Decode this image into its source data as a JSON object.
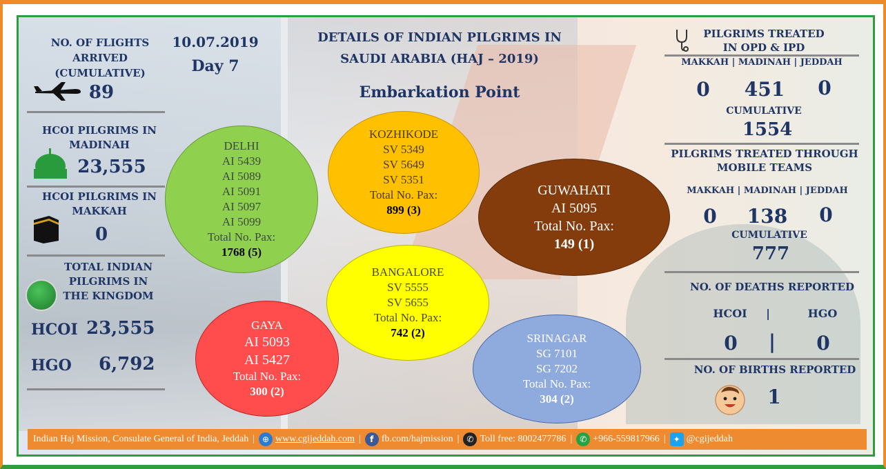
{
  "header": {
    "date": "10.07.2019",
    "day": "Day 7",
    "title_line1": "DETAILS OF INDIAN PILGRIMS IN",
    "title_line2": "SAUDI ARABIA (HAJ – 2019)",
    "subtitle": "Embarkation Point"
  },
  "left": {
    "flights_label_1": "NO. OF FLIGHTS",
    "flights_label_2": "ARRIVED",
    "flights_label_3": "(CUMULATIVE)",
    "flights_value": "89",
    "madinah_label_1": "HCOI PILGRIMS IN",
    "madinah_label_2": "MADINAH",
    "madinah_value": "23,555",
    "makkah_label_1": "HCOI PILGRIMS IN",
    "makkah_label_2": "MAKKAH",
    "makkah_value": "0",
    "kingdom_label_1": "TOTAL INDIAN",
    "kingdom_label_2": "PILGRIMS IN",
    "kingdom_label_3": "THE KINGDOM",
    "hcoi_label": "HCOI",
    "hcoi_value": "23,555",
    "hgo_label": "HGO",
    "hgo_value": "6,792"
  },
  "circles": {
    "delhi": {
      "name": "DELHI",
      "flights": [
        "AI 5439",
        "AI 5089",
        "AI 5091",
        "AI 5097",
        "AI 5099"
      ],
      "pax_label": "Total No. Pax:",
      "pax": "1768 (5)"
    },
    "kozhikode": {
      "name": "KOZHIKODE",
      "flights": [
        "SV 5349",
        "SV 5649",
        "SV 5351"
      ],
      "pax_label": "Total No. Pax:",
      "pax": "899 (3)"
    },
    "guwahati": {
      "name": "GUWAHATI",
      "flights": [
        "AI 5095"
      ],
      "pax_label": "Total No. Pax:",
      "pax": "149 (1)"
    },
    "bangalore": {
      "name": "BANGALORE",
      "flights": [
        "SV 5555",
        "SV 5655"
      ],
      "pax_label": "Total No. Pax:",
      "pax": "742 (2)"
    },
    "gaya": {
      "name": "GAYA",
      "flights": [
        "AI 5093",
        "AI 5427"
      ],
      "pax_label": "Total No. Pax:",
      "pax": "300 (2)"
    },
    "srinagar": {
      "name": "SRINAGAR",
      "flights": [
        "SG 7101",
        "SG 7202"
      ],
      "pax_label": "Total No. Pax:",
      "pax": "304 (2)"
    }
  },
  "right": {
    "opd_title_1": "PILGRIMS TREATED",
    "opd_title_2": "IN OPD & IPD",
    "cities": "MAKKAH | MADINAH | JEDDAH",
    "opd_makkah": "0",
    "opd_madinah": "451",
    "opd_jeddah": "0",
    "cumulative_label": "CUMULATIVE",
    "opd_cumulative": "1554",
    "mobile_title_1": "PILGRIMS TREATED THROUGH",
    "mobile_title_2": "MOBILE TEAMS",
    "mobile_makkah": "0",
    "mobile_madinah": "138",
    "mobile_jeddah": "0",
    "mobile_cumulative": "777",
    "deaths_title": "NO. OF DEATHS REPORTED",
    "deaths_hcoi_label": "HCOI",
    "deaths_hgo_label": "HGO",
    "deaths_divider": "|",
    "deaths_hcoi": "0",
    "deaths_hgo": "0",
    "births_title": "NO. OF BIRTHS REPORTED",
    "births_value": "1"
  },
  "footer": {
    "org": "Indian Haj Mission, Consulate General of India, Jeddah",
    "website": "www.cgijeddah.com",
    "facebook": "fb.com/hajmission",
    "tollfree": "Toll free: 8002477786",
    "whatsapp": "+966-559817966",
    "twitter": "@cgijeddah"
  },
  "colors": {
    "orange": "#f08a24",
    "green": "#2e9e3a",
    "navy": "#1f3566",
    "delhi": "#8fd14f",
    "kozhikode": "#ffc000",
    "guwahati": "#843c0c",
    "bangalore": "#ffff00",
    "gaya": "#ff4d4d",
    "srinagar": "#8faadc"
  }
}
